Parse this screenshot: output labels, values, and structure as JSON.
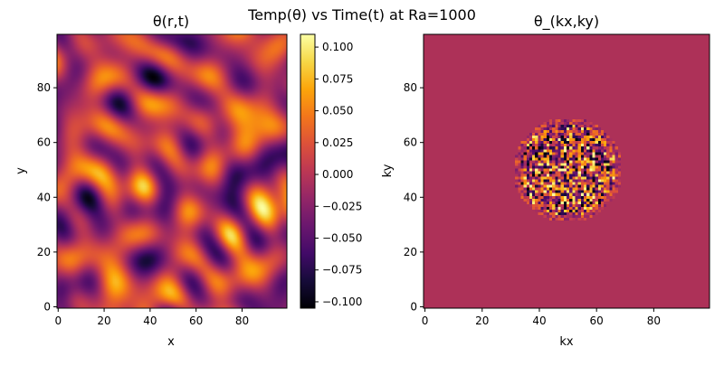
{
  "figure": {
    "suptitle": "Temp(θ) vs Time(t) at Ra=1000"
  },
  "chart_data": [
    {
      "type": "heatmap",
      "title": "θ(r,t)",
      "xlabel": "x",
      "ylabel": "y",
      "xlim": [
        0,
        99
      ],
      "ylim": [
        0,
        99
      ],
      "grid_size": [
        100,
        100
      ],
      "description_of_values": "random smooth noise field",
      "colormap": "inferno",
      "xticks": [
        "0",
        "20",
        "40",
        "60",
        "80"
      ],
      "yticks": [
        "0",
        "20",
        "40",
        "60",
        "80"
      ],
      "colorbar": {
        "min": -0.105,
        "max": 0.11,
        "ticks": [
          "0.100",
          "0.075",
          "0.050",
          "0.025",
          "0.000",
          "−0.025",
          "−0.050",
          "−0.075",
          "−0.100"
        ],
        "tick_values": [
          0.1,
          0.075,
          0.05,
          0.025,
          0.0,
          -0.025,
          -0.05,
          -0.075,
          -0.1
        ]
      }
    },
    {
      "type": "heatmap",
      "title": "θ_(kx,ky)",
      "xlabel": "kx",
      "ylabel": "ky",
      "xlim": [
        0,
        99
      ],
      "ylim": [
        0,
        99
      ],
      "grid_size": [
        100,
        100
      ],
      "colormap": "inferno",
      "background_color": "#ad3158",
      "spectrum_center": [
        50,
        50
      ],
      "spectrum_radius": 17,
      "xticks": [
        "0",
        "20",
        "40",
        "60",
        "80"
      ],
      "yticks": [
        "0",
        "20",
        "40",
        "60",
        "80"
      ]
    }
  ]
}
